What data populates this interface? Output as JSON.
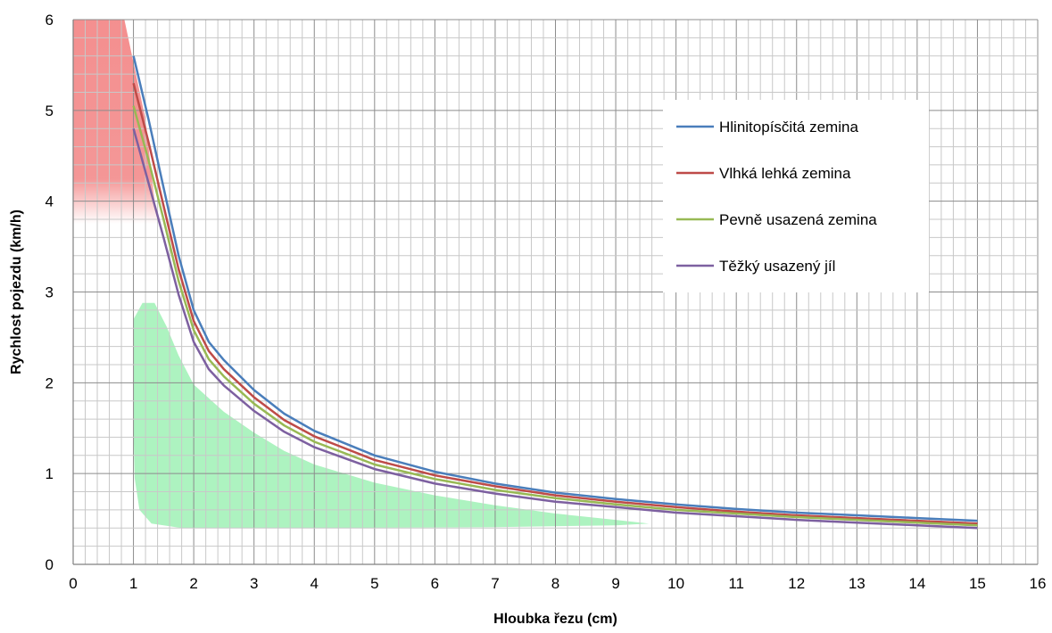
{
  "chart_data": {
    "type": "line",
    "title": "",
    "xlabel": "Hloubka řezu (cm)",
    "ylabel": "Rychlost pojezdu (km/h)",
    "xlim": [
      0,
      16
    ],
    "ylim": [
      0,
      6
    ],
    "x_ticks": [
      "0",
      "1",
      "2",
      "3",
      "4",
      "5",
      "6",
      "7",
      "8",
      "9",
      "10",
      "11",
      "12",
      "13",
      "14",
      "15",
      "16"
    ],
    "y_ticks": [
      "0",
      "1",
      "2",
      "3",
      "4",
      "5",
      "6"
    ],
    "grid": {
      "major": true,
      "minor": true,
      "minor_x_step": 0.2,
      "minor_y_step": 0.2
    },
    "legend_position": "right",
    "x": [
      1,
      1.25,
      1.5,
      1.75,
      2,
      2.25,
      2.5,
      3,
      3.5,
      4,
      5,
      6,
      7,
      8,
      9,
      10,
      11,
      12,
      13,
      14,
      15
    ],
    "series": [
      {
        "name": "Hlinitopísčitá zemina",
        "color": "#4a7ebb",
        "values": [
          5.6,
          4.9,
          4.15,
          3.4,
          2.8,
          2.45,
          2.25,
          1.92,
          1.66,
          1.47,
          1.2,
          1.02,
          0.89,
          0.79,
          0.72,
          0.66,
          0.61,
          0.57,
          0.54,
          0.51,
          0.48
        ]
      },
      {
        "name": "Vlhká lehká zemina",
        "color": "#be4b48",
        "values": [
          5.3,
          4.65,
          3.95,
          3.25,
          2.68,
          2.35,
          2.15,
          1.84,
          1.59,
          1.41,
          1.15,
          0.98,
          0.86,
          0.76,
          0.69,
          0.63,
          0.58,
          0.54,
          0.51,
          0.48,
          0.45
        ]
      },
      {
        "name": "Pevně usazená zemina",
        "color": "#98b954",
        "values": [
          5.05,
          4.45,
          3.8,
          3.12,
          2.58,
          2.26,
          2.07,
          1.77,
          1.53,
          1.35,
          1.1,
          0.94,
          0.82,
          0.73,
          0.66,
          0.6,
          0.56,
          0.52,
          0.49,
          0.46,
          0.43
        ]
      },
      {
        "name": "Těžký usazený jíl",
        "color": "#7d60a0",
        "values": [
          4.8,
          4.2,
          3.6,
          2.97,
          2.45,
          2.15,
          1.97,
          1.69,
          1.46,
          1.29,
          1.05,
          0.89,
          0.78,
          0.69,
          0.63,
          0.57,
          0.53,
          0.49,
          0.46,
          0.43,
          0.4
        ]
      }
    ],
    "shaded_regions": [
      {
        "color": "#f06a6a",
        "outline": [
          [
            0,
            6
          ],
          [
            0.85,
            6
          ],
          [
            1.2,
            4.9
          ],
          [
            1.3,
            4.3
          ],
          [
            1.4,
            3.75
          ],
          [
            0,
            3.75
          ]
        ]
      },
      {
        "color": "#3be36a",
        "outline": [
          [
            1.0,
            2.7
          ],
          [
            1.15,
            2.88
          ],
          [
            1.35,
            2.88
          ],
          [
            1.55,
            2.62
          ],
          [
            1.75,
            2.3
          ],
          [
            2.0,
            1.98
          ],
          [
            2.5,
            1.68
          ],
          [
            3.0,
            1.45
          ],
          [
            3.5,
            1.25
          ],
          [
            4.0,
            1.1
          ],
          [
            5.0,
            0.9
          ],
          [
            6.0,
            0.76
          ],
          [
            7.0,
            0.65
          ],
          [
            8.0,
            0.56
          ],
          [
            9.0,
            0.49
          ],
          [
            9.55,
            0.45
          ],
          [
            9.0,
            0.43
          ],
          [
            7.0,
            0.41
          ],
          [
            4.0,
            0.4
          ],
          [
            1.8,
            0.4
          ],
          [
            1.3,
            0.45
          ],
          [
            1.1,
            0.6
          ],
          [
            1.02,
            0.95
          ],
          [
            1.0,
            1.5
          ]
        ]
      }
    ]
  }
}
